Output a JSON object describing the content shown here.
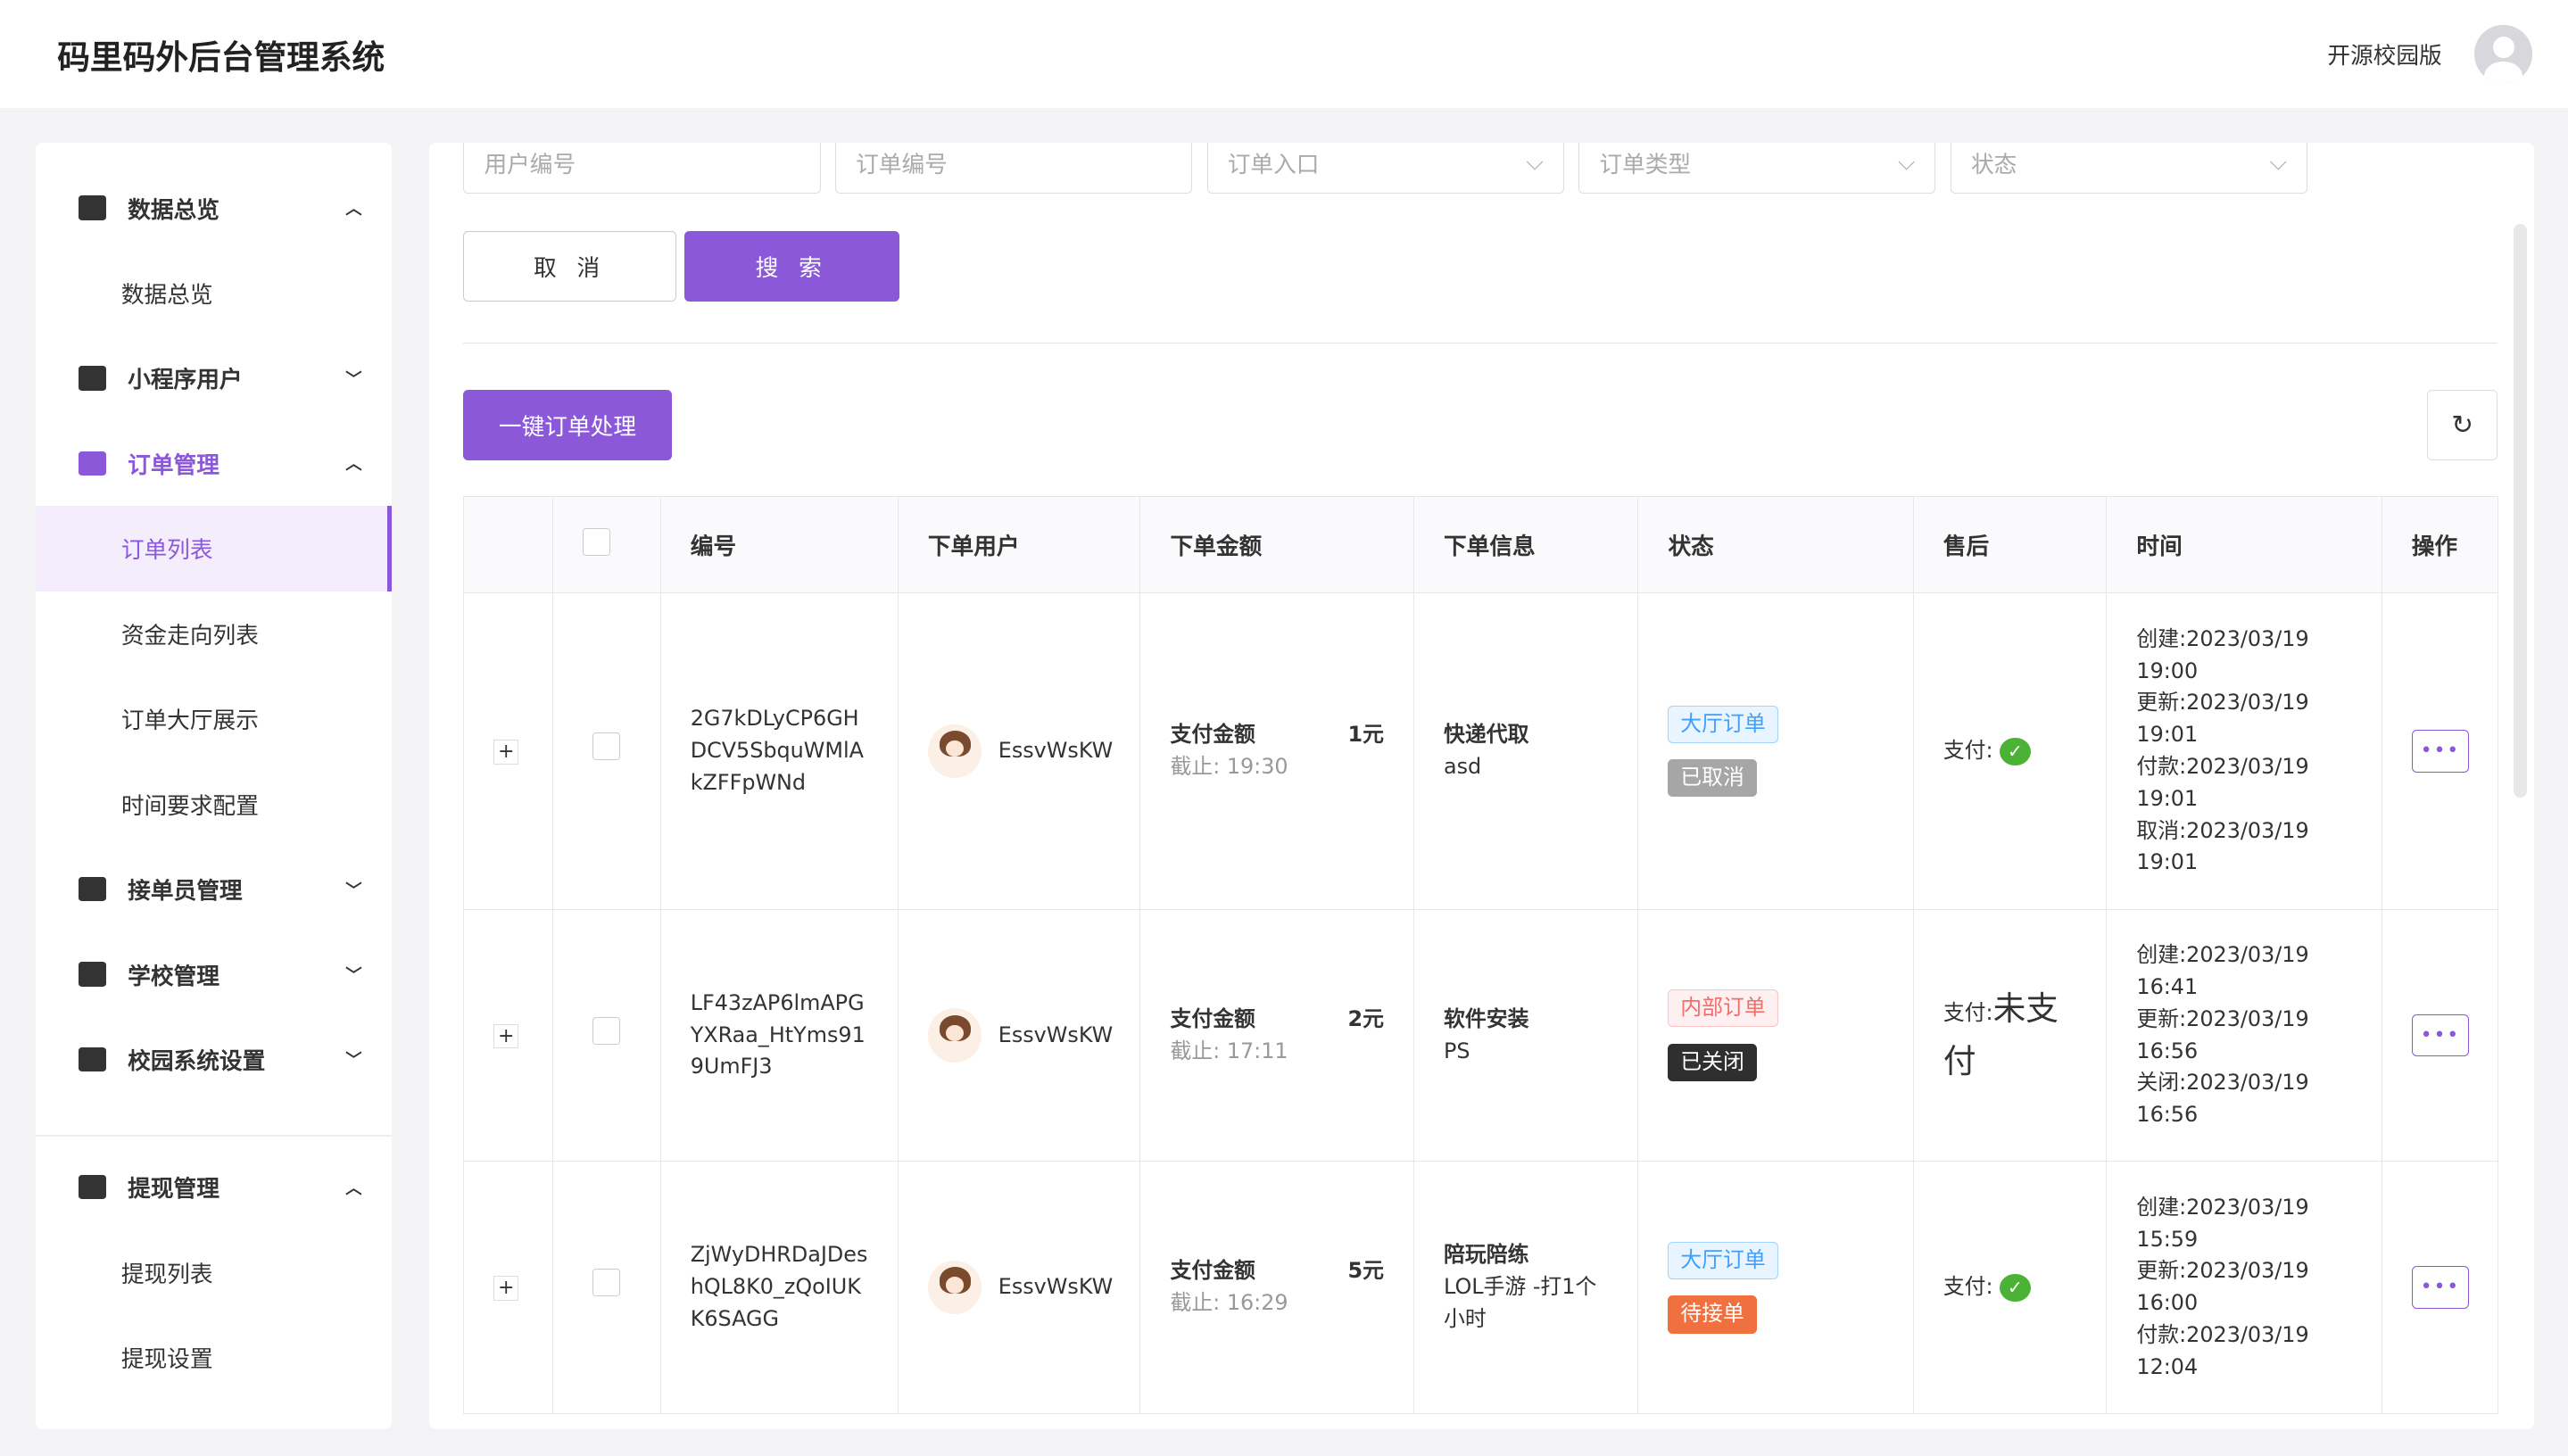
{
  "header": {
    "title": "码里码外后台管理系统",
    "edition": "开源校园版"
  },
  "sidebar": {
    "groups": [
      {
        "label": "数据总览",
        "icon": "dashboard-icon",
        "expanded": true,
        "items": [
          "数据总览"
        ]
      },
      {
        "label": "小程序用户",
        "icon": "users-icon",
        "expanded": false,
        "items": []
      },
      {
        "label": "订单管理",
        "icon": "order-icon",
        "expanded": true,
        "active": true,
        "items": [
          "订单列表",
          "资金走向列表",
          "订单大厅展示",
          "时间要求配置"
        ]
      },
      {
        "label": "接单员管理",
        "icon": "courier-icon",
        "expanded": false,
        "items": []
      },
      {
        "label": "学校管理",
        "icon": "school-icon",
        "expanded": false,
        "items": []
      },
      {
        "label": "校园系统设置",
        "icon": "gear-icon",
        "expanded": false,
        "items": []
      },
      {
        "label": "提现管理",
        "icon": "withdraw-icon",
        "expanded": true,
        "items": [
          "提现列表",
          "提现设置"
        ]
      }
    ],
    "active_item": "订单列表"
  },
  "filters": {
    "user_no": "用户编号",
    "order_no": "订单编号",
    "entry": "订单入口",
    "type": "订单类型",
    "status": "状态"
  },
  "buttons": {
    "cancel": "取 消",
    "search": "搜 索",
    "batch": "一键订单处理"
  },
  "table": {
    "headers": [
      "编号",
      "下单用户",
      "下单金额",
      "下单信息",
      "状态",
      "售后",
      "时间",
      "操作"
    ],
    "rows": [
      {
        "id": [
          "2G7kDLyCP6GH",
          "DCV5SbquWMlA",
          "kZFFpWNd"
        ],
        "user": "EssvWsKW",
        "amount_label": "支付金额",
        "amount": "1元",
        "deadline": "截止: 19:30",
        "info_title": "快递代取",
        "info_desc": "asd",
        "tag1": "大厅订单",
        "tag1_color": "blue",
        "tag2": "已取消",
        "tag2_color": "gray",
        "pay_label": "支付:",
        "paid": true,
        "pay_text": "",
        "times": [
          "创建:2023/03/19",
          "19:00",
          "更新:2023/03/19",
          "19:01",
          "付款:2023/03/19",
          "19:01",
          "取消:2023/03/19",
          "19:01"
        ]
      },
      {
        "id": [
          "LF43zAP6lmAPG",
          "YXRaa_HtYms91",
          "9UmFJ3"
        ],
        "user": "EssvWsKW",
        "amount_label": "支付金额",
        "amount": "2元",
        "deadline": "截止: 17:11",
        "info_title": "软件安装",
        "info_desc": "PS",
        "tag1": "内部订单",
        "tag1_color": "red",
        "tag2": "已关闭",
        "tag2_color": "dark",
        "pay_label": "支付:",
        "paid": false,
        "pay_text": "未支付",
        "times": [
          "创建:2023/03/19",
          "16:41",
          "更新:2023/03/19",
          "16:56",
          "关闭:2023/03/19",
          "16:56"
        ]
      },
      {
        "id": [
          "ZjWyDHRDaJDes",
          "hQL8K0_zQoIUK",
          "K6SAGG"
        ],
        "user": "EssvWsKW",
        "amount_label": "支付金额",
        "amount": "5元",
        "deadline": "截止: 16:29",
        "info_title": "陪玩陪练",
        "info_desc": "LOL手游 -打1个小时",
        "tag1": "大厅订单",
        "tag1_color": "blue",
        "tag2": "待接单",
        "tag2_color": "orange",
        "pay_label": "支付:",
        "paid": true,
        "pay_text": "",
        "times": [
          "创建:2023/03/19",
          "15:59",
          "更新:2023/03/19",
          "16:00",
          "付款:2023/03/19",
          "12:04"
        ]
      }
    ]
  },
  "colors": {
    "accent": "#8a58d8",
    "wechat": "#4cb236"
  }
}
